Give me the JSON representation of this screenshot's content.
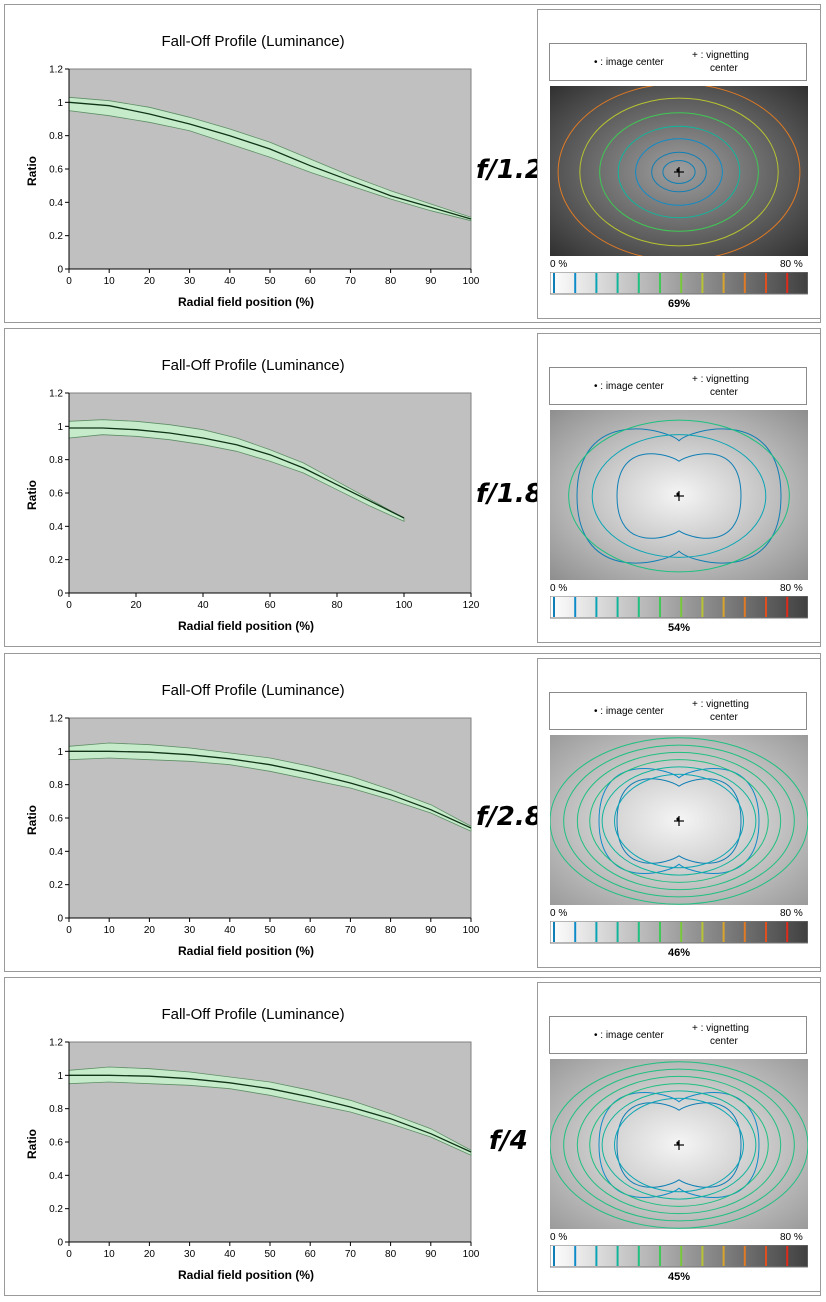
{
  "colors": {
    "plot_bg": "#c0c0c0",
    "band_fill": "#c6ebcb",
    "band_edge": "#5f8f66",
    "mean_line": "#0f3316"
  },
  "legend": {
    "image_center": "• : image center",
    "vig_plus": "+ : vignetting",
    "vig_center": "center"
  },
  "scale": {
    "low": "0 %",
    "high": "80 %"
  },
  "chart_data": [
    {
      "type": "line",
      "title": "Fall-Off Profile (Luminance)",
      "xlabel": "Radial field position (%)",
      "ylabel": "Ratio",
      "xlim": [
        0,
        100
      ],
      "ylim": [
        0,
        1.2
      ],
      "xticks": [
        "0",
        "10",
        "20",
        "30",
        "40",
        "50",
        "60",
        "70",
        "80",
        "90",
        "100"
      ],
      "yticks": [
        "0",
        "0.2",
        "0.4",
        "0.6",
        "0.8",
        "1",
        "1.2"
      ],
      "grid": false,
      "series": [
        {
          "x": [
            0,
            10,
            20,
            30,
            40,
            50,
            60,
            70,
            80,
            90,
            100
          ],
          "values": [
            1.0,
            0.98,
            0.93,
            0.87,
            0.8,
            0.72,
            0.62,
            0.53,
            0.44,
            0.37,
            0.3
          ]
        }
      ],
      "band_upper": [
        1.03,
        1.01,
        0.97,
        0.91,
        0.84,
        0.76,
        0.66,
        0.56,
        0.47,
        0.39,
        0.31
      ],
      "band_lower": [
        0.95,
        0.92,
        0.88,
        0.83,
        0.75,
        0.67,
        0.58,
        0.5,
        0.42,
        0.35,
        0.29
      ],
      "aperture": "f/1.2",
      "vignetting_percent": "69%"
    },
    {
      "type": "line",
      "title": "Fall-Off Profile (Luminance)",
      "xlabel": "Radial field position (%)",
      "ylabel": "Ratio",
      "xlim": [
        0,
        120
      ],
      "ylim": [
        0,
        1.2
      ],
      "xticks": [
        "0",
        "20",
        "40",
        "60",
        "80",
        "100",
        "120"
      ],
      "yticks": [
        "0",
        "0.2",
        "0.4",
        "0.6",
        "0.8",
        "1",
        "1.2"
      ],
      "grid": false,
      "series": [
        {
          "x": [
            0,
            10,
            20,
            30,
            40,
            50,
            60,
            70,
            80,
            90,
            100
          ],
          "values": [
            0.99,
            0.99,
            0.98,
            0.96,
            0.93,
            0.89,
            0.83,
            0.75,
            0.65,
            0.55,
            0.45
          ]
        }
      ],
      "band_upper": [
        1.03,
        1.04,
        1.03,
        1.01,
        0.98,
        0.93,
        0.86,
        0.78,
        0.67,
        0.56,
        0.45
      ],
      "band_lower": [
        0.93,
        0.95,
        0.94,
        0.92,
        0.89,
        0.85,
        0.79,
        0.72,
        0.62,
        0.52,
        0.43
      ],
      "aperture": "f/1.8",
      "vignetting_percent": "54%"
    },
    {
      "type": "line",
      "title": "Fall-Off Profile (Luminance)",
      "xlabel": "Radial field position (%)",
      "ylabel": "Ratio",
      "xlim": [
        0,
        100
      ],
      "ylim": [
        0,
        1.2
      ],
      "xticks": [
        "0",
        "10",
        "20",
        "30",
        "40",
        "50",
        "60",
        "70",
        "80",
        "90",
        "100"
      ],
      "yticks": [
        "0",
        "0.2",
        "0.4",
        "0.6",
        "0.8",
        "1",
        "1.2"
      ],
      "grid": false,
      "series": [
        {
          "x": [
            0,
            10,
            20,
            30,
            40,
            50,
            60,
            70,
            80,
            90,
            100
          ],
          "values": [
            1.0,
            1.0,
            0.995,
            0.98,
            0.955,
            0.92,
            0.87,
            0.81,
            0.74,
            0.65,
            0.54
          ]
        }
      ],
      "band_upper": [
        1.03,
        1.05,
        1.04,
        1.02,
        0.99,
        0.96,
        0.91,
        0.85,
        0.77,
        0.68,
        0.55
      ],
      "band_lower": [
        0.95,
        0.96,
        0.95,
        0.94,
        0.92,
        0.88,
        0.83,
        0.78,
        0.71,
        0.63,
        0.52
      ],
      "aperture": "f/2.8",
      "vignetting_percent": "46%"
    },
    {
      "type": "line",
      "title": "Fall-Off Profile (Luminance)",
      "xlabel": "Radial field position (%)",
      "ylabel": "Ratio",
      "xlim": [
        0,
        100
      ],
      "ylim": [
        0,
        1.2
      ],
      "xticks": [
        "0",
        "10",
        "20",
        "30",
        "40",
        "50",
        "60",
        "70",
        "80",
        "90",
        "100"
      ],
      "yticks": [
        "0",
        "0.2",
        "0.4",
        "0.6",
        "0.8",
        "1",
        "1.2"
      ],
      "grid": false,
      "series": [
        {
          "x": [
            0,
            10,
            20,
            30,
            40,
            50,
            60,
            70,
            80,
            90,
            100
          ],
          "values": [
            1.0,
            1.0,
            0.995,
            0.98,
            0.955,
            0.92,
            0.87,
            0.81,
            0.74,
            0.65,
            0.54
          ]
        }
      ],
      "band_upper": [
        1.03,
        1.05,
        1.04,
        1.02,
        0.99,
        0.96,
        0.91,
        0.85,
        0.77,
        0.68,
        0.55
      ],
      "band_lower": [
        0.95,
        0.96,
        0.95,
        0.94,
        0.92,
        0.88,
        0.83,
        0.78,
        0.71,
        0.63,
        0.52
      ],
      "aperture": "f/4",
      "vignetting_percent": "45%"
    }
  ]
}
